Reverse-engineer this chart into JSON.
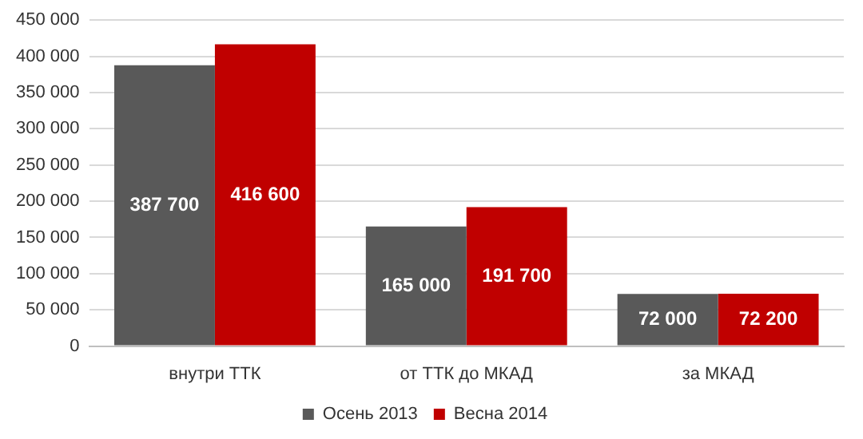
{
  "chart_data": {
    "type": "bar",
    "categories": [
      "внутри ТТК",
      "от ТТК до МКАД",
      "за МКАД"
    ],
    "series": [
      {
        "name": "Осень 2013",
        "color": "#595959",
        "values": [
          387700,
          165000,
          72000
        ],
        "value_labels": [
          "387 700",
          "165 000",
          "72 000"
        ]
      },
      {
        "name": "Весна 2014",
        "color": "#c00000",
        "values": [
          416600,
          191700,
          72200
        ],
        "value_labels": [
          "416 600",
          "191 700",
          "72 200"
        ]
      }
    ],
    "ylim": [
      0,
      450000
    ],
    "yticks": [
      {
        "value": 0,
        "label": "0"
      },
      {
        "value": 50000,
        "label": "50 000"
      },
      {
        "value": 100000,
        "label": "100 000"
      },
      {
        "value": 150000,
        "label": "150 000"
      },
      {
        "value": 200000,
        "label": "200 000"
      },
      {
        "value": 250000,
        "label": "250 000"
      },
      {
        "value": 300000,
        "label": "300 000"
      },
      {
        "value": 350000,
        "label": "350 000"
      },
      {
        "value": 400000,
        "label": "400 000"
      },
      {
        "value": 450000,
        "label": "450 000"
      }
    ],
    "grid": "y",
    "legend": "bottom"
  }
}
